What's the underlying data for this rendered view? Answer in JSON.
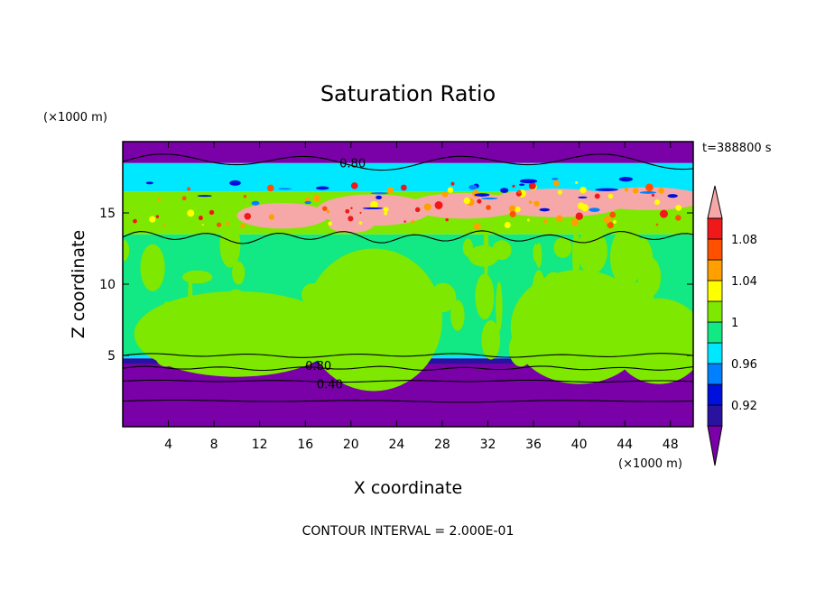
{
  "chart_data": {
    "type": "heatmap",
    "title": "Saturation Ratio",
    "xlabel": "X coordinate",
    "ylabel": "Z coordinate",
    "x_unit": "(×1000 m)",
    "y_unit": "(×1000 m)",
    "time_label": "t=388800 s",
    "footer": "CONTOUR INTERVAL = 2.000E-01",
    "xlim": [
      0,
      50
    ],
    "ylim": [
      0,
      20
    ],
    "x_ticks": [
      4,
      8,
      12,
      16,
      20,
      24,
      28,
      32,
      36,
      40,
      44,
      48
    ],
    "y_ticks": [
      5,
      10,
      15
    ],
    "grid": false,
    "colorbar": {
      "labels": [
        1.08,
        1.04,
        1,
        0.96,
        0.92
      ],
      "levels": [
        0.9,
        0.92,
        0.94,
        0.96,
        0.98,
        1.0,
        1.02,
        1.04,
        1.06,
        1.08,
        1.1
      ],
      "colors": [
        "#7a00a8",
        "#2a12a0",
        "#0010dc",
        "#0080ff",
        "#00e8ff",
        "#12e884",
        "#7ee800",
        "#ffff00",
        "#ffa000",
        "#ff5000",
        "#f01818",
        "#f6a8a8"
      ]
    },
    "bands": [
      {
        "z0": 0.0,
        "z1": 4.4,
        "color": "#7a00a8"
      },
      {
        "z0": 4.4,
        "z1": 4.8,
        "color": "#2a12a0"
      },
      {
        "z0": 4.8,
        "z1": 5.0,
        "color": "#00e8ff"
      },
      {
        "z0": 5.0,
        "z1": 13.5,
        "color": "#12e884"
      },
      {
        "z0": 13.5,
        "z1": 16.5,
        "color": "#7ee800"
      },
      {
        "z0": 16.5,
        "z1": 18.5,
        "color": "#00e8ff"
      },
      {
        "z0": 18.5,
        "z1": 20.0,
        "color": "#7a00a8"
      }
    ],
    "contour_labels": [
      {
        "text": "0.80",
        "x": 19,
        "z": 18.5
      },
      {
        "text": "0.80",
        "x": 16,
        "z": 4.3
      },
      {
        "text": "0.40",
        "x": 17,
        "z": 3.0
      }
    ]
  }
}
